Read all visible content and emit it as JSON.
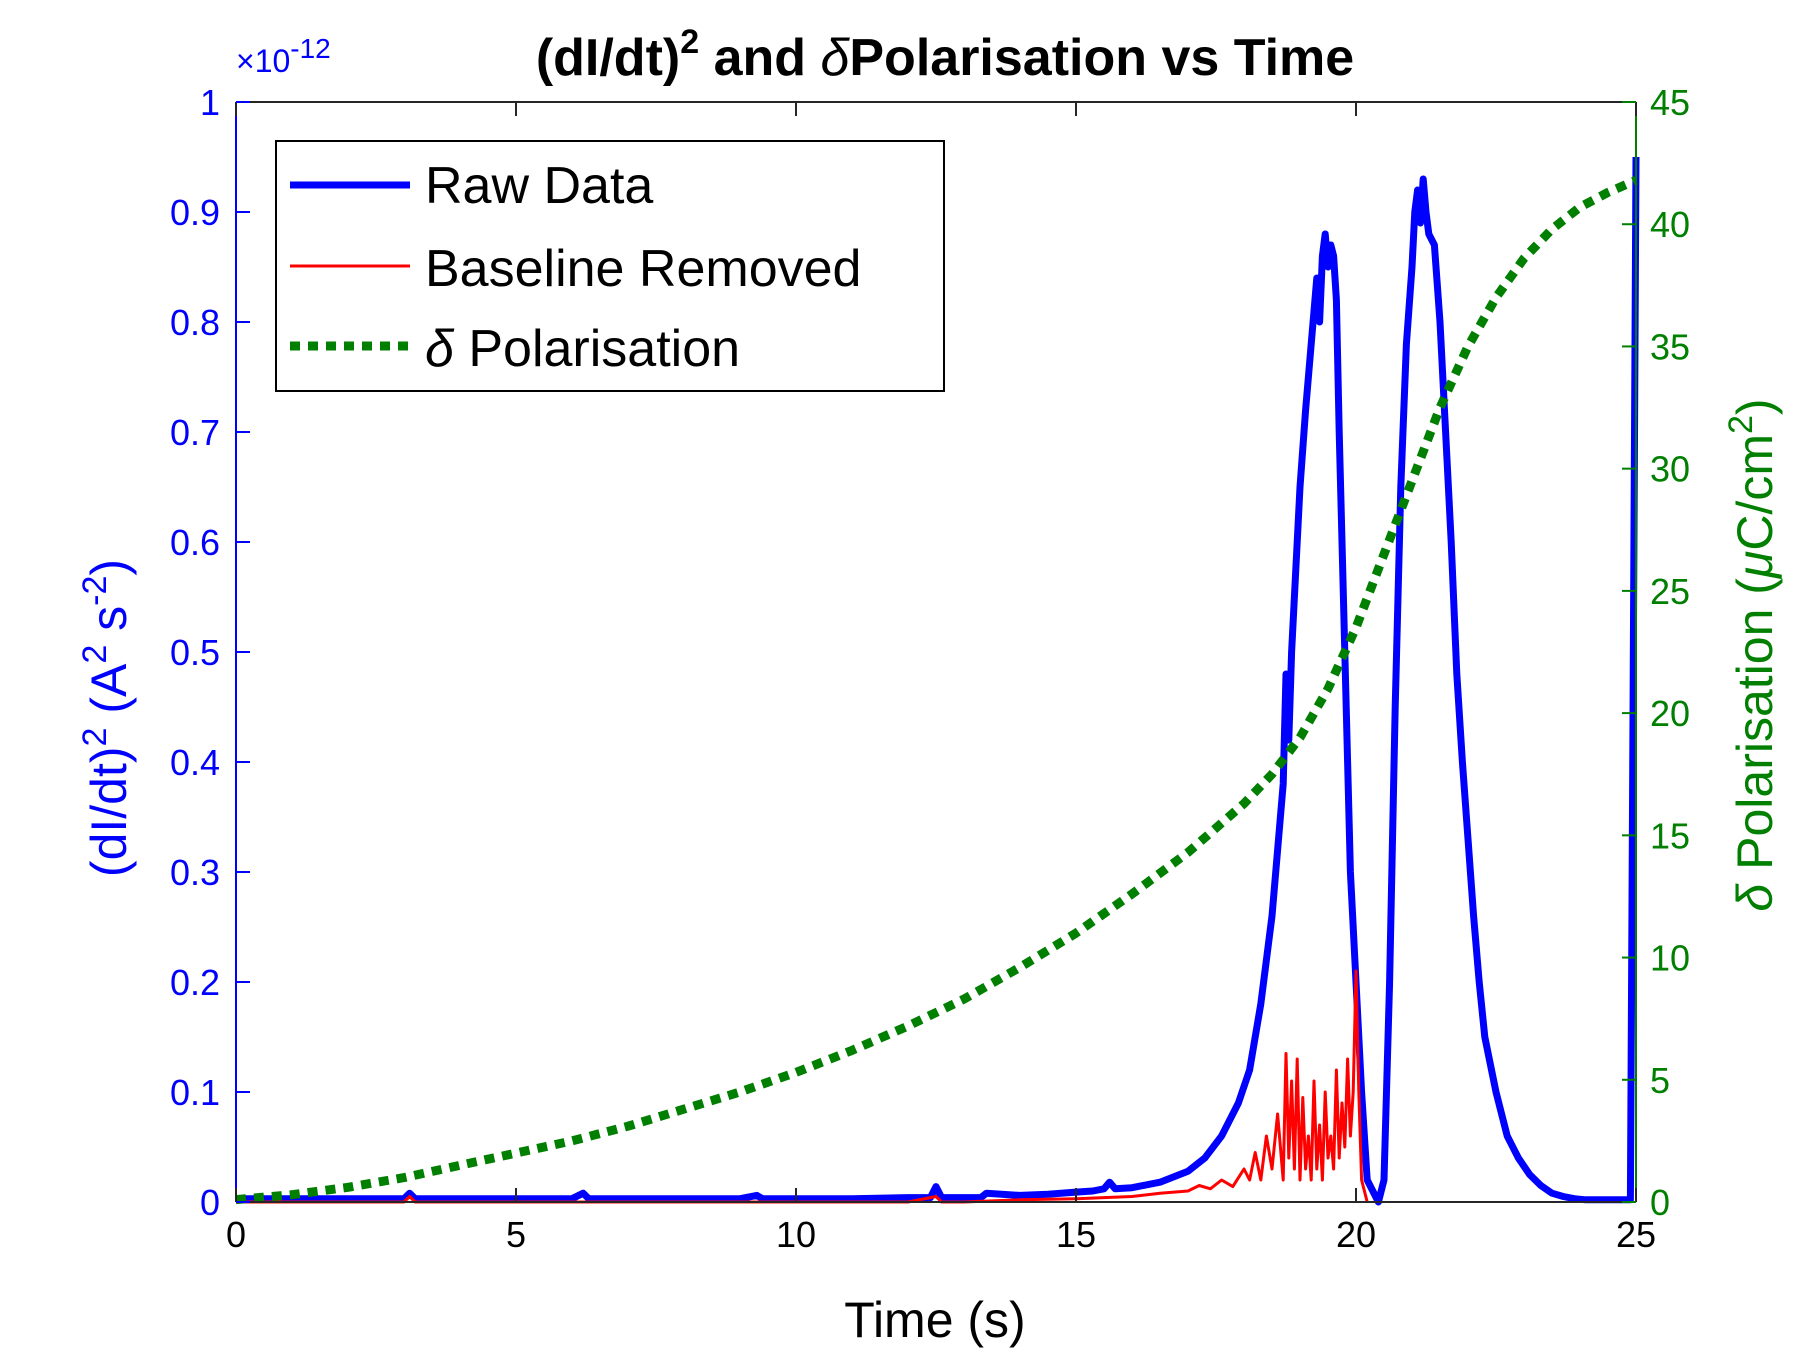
{
  "colors": {
    "left_axis": "#0000ff",
    "right_axis": "#007f00",
    "raw": "#0000ff",
    "baseline": "#ff0000",
    "polarisation": "#007f00",
    "text": "#000000"
  },
  "chart_data": {
    "type": "line",
    "title_main": "(dI/dt)",
    "title_sup": "2",
    "title_mid": " and ",
    "title_delta": "δ",
    "title_end": "Polarisation vs Time",
    "xlabel": "Time (s)",
    "ylabel_left_a": "(dI/dt)",
    "ylabel_left_sup1": "2",
    "ylabel_left_b": " (A",
    "ylabel_left_sup2": "2",
    "ylabel_left_c": " s",
    "ylabel_left_sup3": "-2",
    "ylabel_left_d": ")",
    "ylabel_right_delta": "δ",
    "ylabel_right_a": " Polarisation (",
    "ylabel_right_mu": "μ",
    "ylabel_right_b": "C/cm",
    "ylabel_right_sup": "2",
    "ylabel_right_c": ")",
    "left_exponent_prefix": "×10",
    "left_exponent_power": "-12",
    "xlim": [
      0,
      25
    ],
    "ylim_left": [
      0,
      1
    ],
    "ylim_right": [
      0,
      45
    ],
    "x_ticks": [
      "0",
      "5",
      "10",
      "15",
      "20",
      "25"
    ],
    "y_left_ticks": [
      "0",
      "0.1",
      "0.2",
      "0.3",
      "0.4",
      "0.5",
      "0.6",
      "0.7",
      "0.8",
      "0.9",
      "1"
    ],
    "y_right_ticks": [
      "0",
      "5",
      "10",
      "15",
      "20",
      "25",
      "30",
      "35",
      "40",
      "45"
    ],
    "grid": false,
    "legend_position": "top-left",
    "legend": [
      "Raw Data",
      "Baseline Removed",
      "Polarisation"
    ],
    "legend_delta": "δ",
    "series": [
      {
        "name": "Raw Data",
        "axis": "left",
        "x": [
          0,
          1,
          2,
          3,
          3.1,
          3.2,
          4,
          5,
          6,
          6.2,
          6.3,
          7,
          8,
          9,
          9.3,
          9.4,
          10,
          11,
          12,
          12.4,
          12.5,
          12.6,
          13,
          13.3,
          13.4,
          14,
          14.5,
          15,
          15.3,
          15.5,
          15.6,
          15.7,
          16,
          16.5,
          17,
          17.3,
          17.6,
          17.9,
          18.1,
          18.3,
          18.5,
          18.6,
          18.7,
          18.75,
          18.8,
          18.85,
          18.9,
          19.0,
          19.1,
          19.2,
          19.3,
          19.35,
          19.4,
          19.45,
          19.5,
          19.55,
          19.6,
          19.65,
          19.7,
          19.8,
          19.9,
          20.0,
          20.1,
          20.2,
          20.3,
          20.4,
          20.5,
          20.6,
          20.7,
          20.8,
          20.9,
          21.0,
          21.05,
          21.1,
          21.15,
          21.2,
          21.25,
          21.3,
          21.4,
          21.5,
          21.6,
          21.7,
          21.8,
          21.9,
          22.0,
          22.1,
          22.2,
          22.3,
          22.5,
          22.7,
          22.9,
          23.1,
          23.3,
          23.5,
          23.7,
          23.9,
          24.1,
          24.3,
          24.5,
          24.7,
          24.9,
          25.0
        ],
        "values": [
          0.003,
          0.003,
          0.003,
          0.003,
          0.008,
          0.003,
          0.003,
          0.003,
          0.003,
          0.008,
          0.003,
          0.003,
          0.003,
          0.003,
          0.006,
          0.003,
          0.003,
          0.003,
          0.004,
          0.004,
          0.014,
          0.004,
          0.004,
          0.004,
          0.008,
          0.006,
          0.007,
          0.009,
          0.01,
          0.012,
          0.018,
          0.012,
          0.013,
          0.018,
          0.028,
          0.04,
          0.06,
          0.09,
          0.12,
          0.18,
          0.26,
          0.32,
          0.38,
          0.48,
          0.42,
          0.5,
          0.55,
          0.65,
          0.72,
          0.78,
          0.84,
          0.8,
          0.86,
          0.88,
          0.85,
          0.87,
          0.86,
          0.82,
          0.7,
          0.5,
          0.3,
          0.2,
          0.1,
          0.02,
          0.01,
          0.0,
          0.02,
          0.2,
          0.45,
          0.65,
          0.78,
          0.85,
          0.9,
          0.92,
          0.89,
          0.93,
          0.9,
          0.88,
          0.87,
          0.8,
          0.7,
          0.6,
          0.48,
          0.4,
          0.33,
          0.26,
          0.2,
          0.15,
          0.1,
          0.06,
          0.04,
          0.025,
          0.015,
          0.008,
          0.005,
          0.003,
          0.002,
          0.002,
          0.002,
          0.002,
          0.002,
          0.95
        ]
      },
      {
        "name": "Baseline Removed",
        "axis": "left",
        "x": [
          0,
          3,
          3.1,
          3.2,
          6,
          9,
          12,
          12.5,
          12.6,
          13,
          14,
          15,
          15.5,
          16,
          16.5,
          17,
          17.2,
          17.4,
          17.6,
          17.8,
          18.0,
          18.1,
          18.2,
          18.3,
          18.4,
          18.5,
          18.6,
          18.7,
          18.75,
          18.8,
          18.85,
          18.9,
          18.95,
          19.0,
          19.05,
          19.1,
          19.15,
          19.2,
          19.25,
          19.3,
          19.35,
          19.4,
          19.45,
          19.5,
          19.55,
          19.6,
          19.65,
          19.7,
          19.75,
          19.8,
          19.85,
          19.9,
          19.95,
          20.0,
          20.05,
          20.1,
          20.15,
          20.2
        ],
        "values": [
          0.0,
          0.0,
          0.005,
          0.0,
          0.0,
          0.0,
          0.0,
          0.005,
          0.0,
          0.0,
          0.002,
          0.003,
          0.004,
          0.005,
          0.008,
          0.01,
          0.015,
          0.012,
          0.02,
          0.014,
          0.03,
          0.02,
          0.045,
          0.02,
          0.06,
          0.03,
          0.08,
          0.02,
          0.135,
          0.04,
          0.11,
          0.03,
          0.13,
          0.02,
          0.095,
          0.03,
          0.06,
          0.02,
          0.11,
          0.03,
          0.07,
          0.02,
          0.1,
          0.04,
          0.06,
          0.03,
          0.12,
          0.04,
          0.09,
          0.05,
          0.13,
          0.06,
          0.1,
          0.21,
          0.1,
          0.02,
          0.01,
          0.0
        ]
      },
      {
        "name": "δ Polarisation",
        "axis": "right",
        "x": [
          0,
          1,
          2,
          3,
          4,
          5,
          6,
          7,
          8,
          9,
          10,
          11,
          12,
          13,
          14,
          15,
          16,
          17,
          18,
          18.5,
          19,
          19.5,
          20,
          20.5,
          21,
          21.5,
          22,
          22.5,
          23,
          23.5,
          24,
          24.5,
          25
        ],
        "values": [
          0.1,
          0.3,
          0.6,
          1.0,
          1.5,
          2.0,
          2.5,
          3.1,
          3.8,
          4.5,
          5.3,
          6.2,
          7.2,
          8.3,
          9.6,
          11.0,
          12.6,
          14.3,
          16.3,
          17.5,
          19.0,
          21.0,
          23.5,
          26.5,
          29.5,
          32.5,
          35.0,
          37.0,
          38.6,
          39.8,
          40.7,
          41.3,
          41.8
        ]
      }
    ]
  }
}
